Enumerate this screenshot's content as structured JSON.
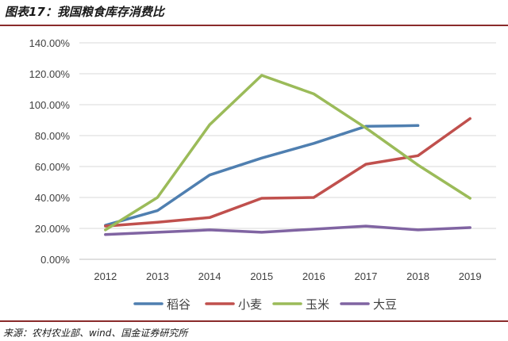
{
  "header": {
    "title": "图表17：我国粮食库存消费比"
  },
  "footer": {
    "source": "来源：农村农业部、wind、国金证券研究所"
  },
  "chart_data": {
    "type": "line",
    "title": "",
    "xlabel": "",
    "ylabel": "",
    "x": [
      "2012",
      "2013",
      "2014",
      "2015",
      "2016",
      "2017",
      "2018",
      "2019"
    ],
    "ylim": [
      0,
      140
    ],
    "yticks": [
      0,
      20,
      40,
      60,
      80,
      100,
      120,
      140
    ],
    "ytick_labels": [
      "0.00%",
      "20.00%",
      "40.00%",
      "60.00%",
      "80.00%",
      "100.00%",
      "120.00%",
      "140.00%"
    ],
    "grid": true,
    "legend_position": "bottom",
    "series": [
      {
        "name": "稻谷",
        "color": "#4f7fb0",
        "values": [
          22,
          31.5,
          54.5,
          65.5,
          75,
          86,
          86.5,
          null
        ]
      },
      {
        "name": "小麦",
        "color": "#c0504d",
        "values": [
          21.5,
          24,
          27,
          39.5,
          40,
          61.5,
          67,
          91
        ]
      },
      {
        "name": "玉米",
        "color": "#9bbb59",
        "values": [
          19,
          40,
          87,
          119,
          107,
          85,
          61,
          39.5
        ]
      },
      {
        "name": "大豆",
        "color": "#8064a2",
        "values": [
          16,
          17.5,
          19,
          17.5,
          19.5,
          21.5,
          19,
          20.5
        ]
      }
    ]
  }
}
